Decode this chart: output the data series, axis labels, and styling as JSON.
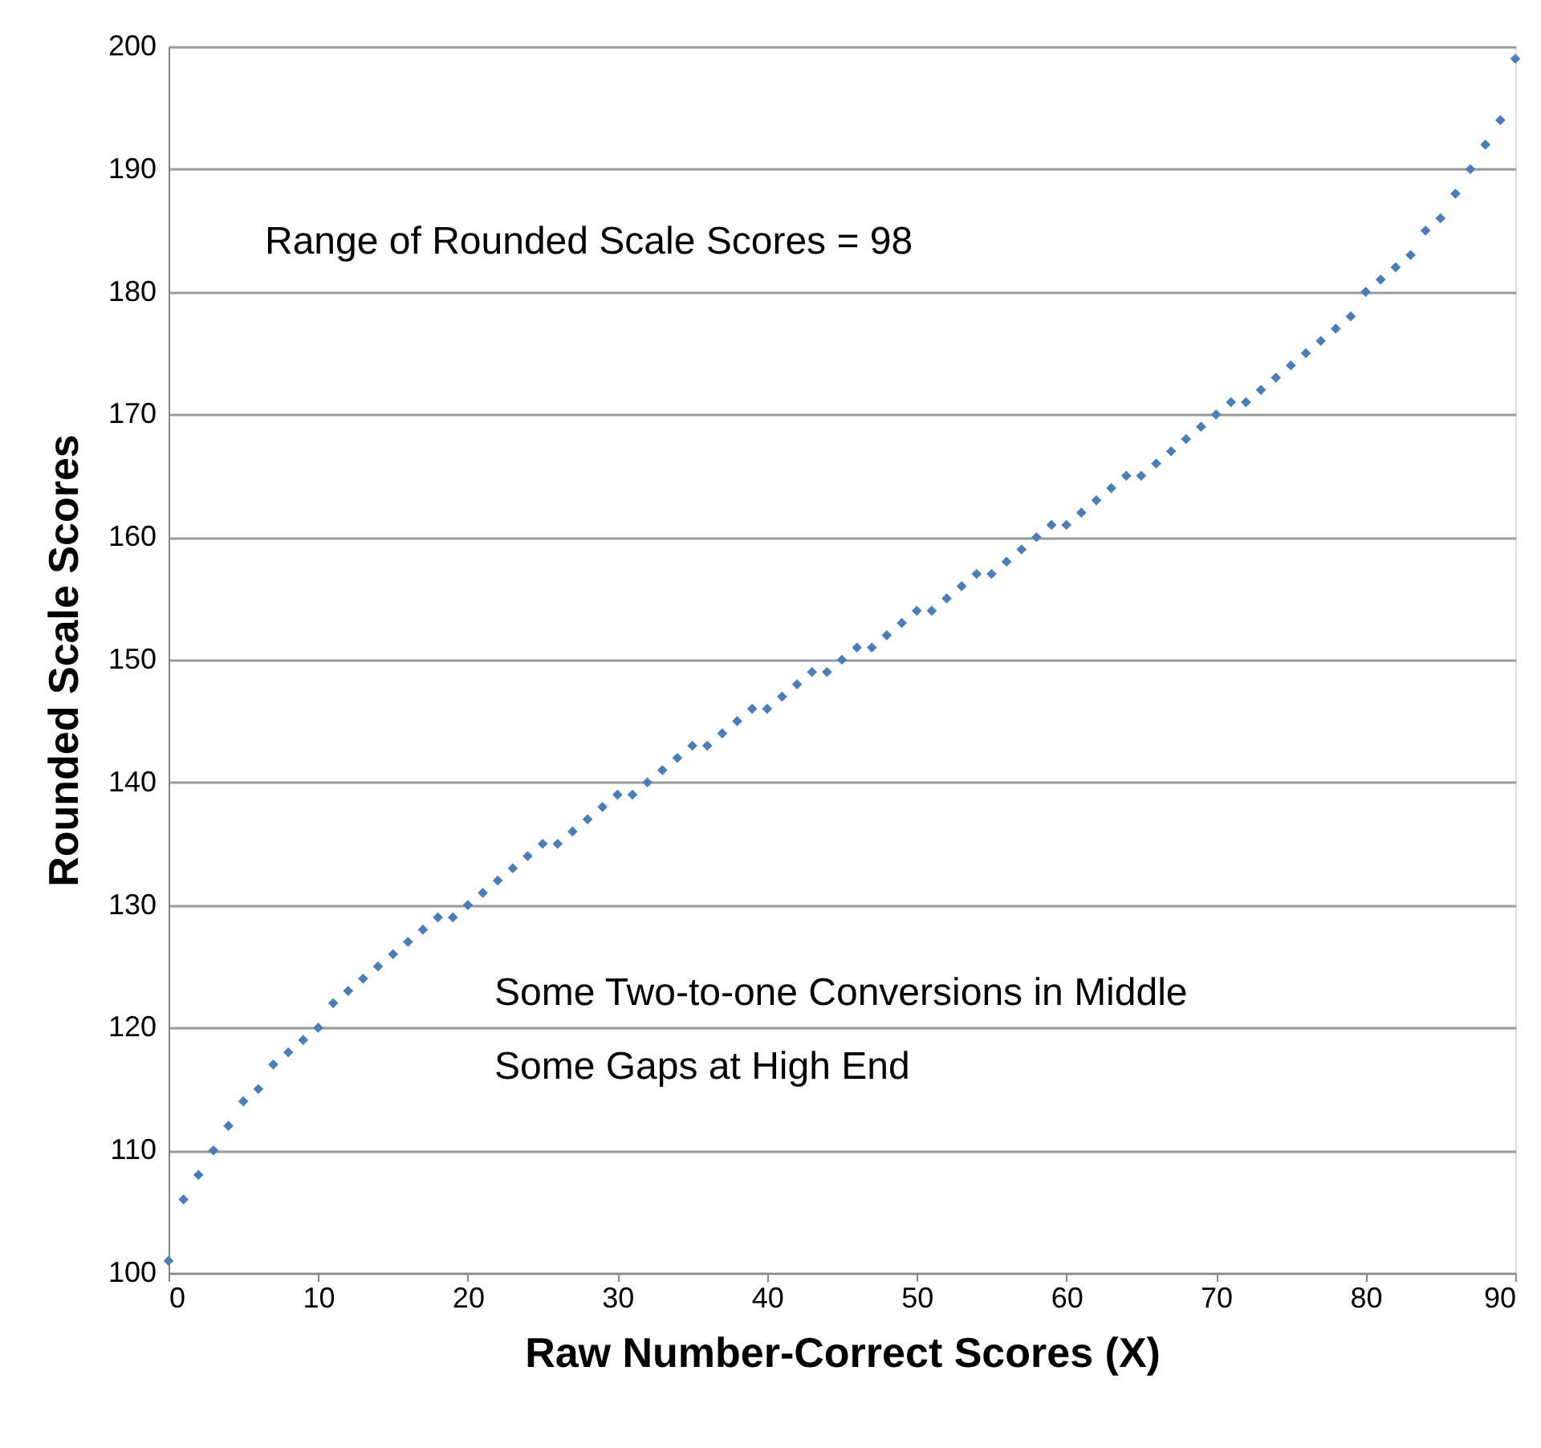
{
  "chart_data": {
    "type": "scatter",
    "xlabel": "Raw Number-Correct Scores (X)",
    "ylabel": "Rounded Scale Scores",
    "annotations": [
      "Range of Rounded Scale Scores = 98",
      "Some  Two-to-one Conversions in Middle",
      "Some Gaps at High End"
    ],
    "x": [
      0,
      1,
      2,
      3,
      4,
      5,
      6,
      7,
      8,
      9,
      10,
      11,
      12,
      13,
      14,
      15,
      16,
      17,
      18,
      19,
      20,
      21,
      22,
      23,
      24,
      25,
      26,
      27,
      28,
      29,
      30,
      31,
      32,
      33,
      34,
      35,
      36,
      37,
      38,
      39,
      40,
      41,
      42,
      43,
      44,
      45,
      46,
      47,
      48,
      49,
      50,
      51,
      52,
      53,
      54,
      55,
      56,
      57,
      58,
      59,
      60,
      61,
      62,
      63,
      64,
      65,
      66,
      67,
      68,
      69,
      70,
      71,
      72,
      73,
      74,
      75,
      76,
      77,
      78,
      79,
      80,
      81,
      82,
      83,
      84,
      85,
      86,
      87,
      88,
      89,
      90
    ],
    "series": [
      {
        "color": "#4a7ebb",
        "values": [
          101,
          106,
          108,
          110,
          112,
          114,
          115,
          117,
          118,
          119,
          120,
          122,
          123,
          124,
          125,
          126,
          127,
          128,
          129,
          129,
          130,
          131,
          132,
          133,
          134,
          135,
          135,
          136,
          137,
          138,
          139,
          139,
          140,
          141,
          142,
          143,
          143,
          144,
          145,
          146,
          146,
          147,
          148,
          149,
          149,
          150,
          151,
          151,
          152,
          153,
          154,
          154,
          155,
          156,
          157,
          157,
          158,
          159,
          160,
          161,
          161,
          162,
          163,
          164,
          165,
          165,
          166,
          167,
          168,
          169,
          170,
          171,
          171,
          172,
          173,
          174,
          175,
          176,
          177,
          178,
          180,
          181,
          182,
          183,
          185,
          186,
          188,
          190,
          192,
          194,
          199
        ]
      }
    ],
    "xlim": [
      0,
      90
    ],
    "xticks": [
      0,
      10,
      20,
      30,
      40,
      50,
      60,
      70,
      80,
      90
    ],
    "ylim": [
      100,
      200
    ],
    "yticks": [
      100,
      110,
      120,
      130,
      140,
      150,
      160,
      170,
      180,
      190,
      200
    ],
    "grid": "y",
    "marker": "diamond"
  }
}
